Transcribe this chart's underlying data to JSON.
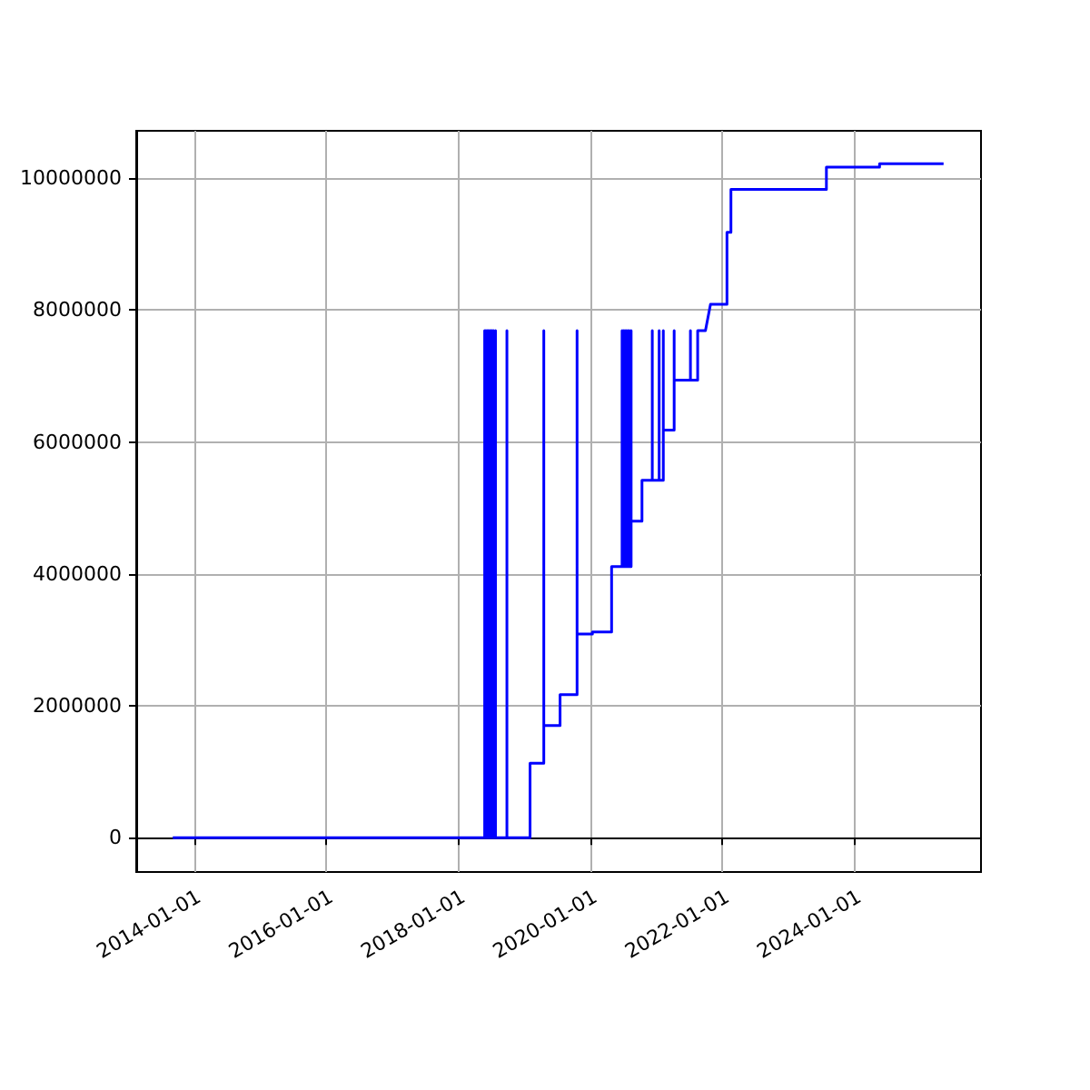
{
  "chart_data": {
    "type": "line",
    "color": "#0000ff",
    "grid": true,
    "x": [
      "2013-09-05",
      "2018-05-27",
      "2018-05-27",
      "2018-05-27",
      "2018-06-03",
      "2018-06-03",
      "2018-06-03",
      "2018-06-10",
      "2018-06-10",
      "2018-06-10",
      "2018-06-17",
      "2018-06-17",
      "2018-06-17",
      "2018-06-24",
      "2018-06-24",
      "2018-06-24",
      "2018-07-01",
      "2018-07-01",
      "2018-07-01",
      "2018-07-08",
      "2018-07-08",
      "2018-07-08",
      "2018-07-15",
      "2018-07-15",
      "2018-07-15",
      "2018-07-26",
      "2018-07-26",
      "2018-07-26",
      "2018-09-27",
      "2018-09-27",
      "2018-09-27",
      "2019-02-02",
      "2019-02-02",
      "2019-04-19",
      "2019-04-19",
      "2019-04-19",
      "2019-07-18",
      "2019-07-18",
      "2019-10-20",
      "2019-10-20",
      "2019-10-20",
      "2020-01-13",
      "2020-01-13",
      "2020-04-28",
      "2020-04-28",
      "2020-06-25",
      "2020-06-25",
      "2020-06-25",
      "2020-07-03",
      "2020-07-03",
      "2020-07-03",
      "2020-07-11",
      "2020-07-11",
      "2020-07-11",
      "2020-07-19",
      "2020-07-19",
      "2020-07-19",
      "2020-07-27",
      "2020-07-27",
      "2020-07-27",
      "2020-08-04",
      "2020-08-04",
      "2020-08-04",
      "2020-08-14",
      "2020-08-14",
      "2020-08-14",
      "2020-10-13",
      "2020-10-13",
      "2020-12-09",
      "2020-12-09",
      "2020-12-09",
      "2021-01-16",
      "2021-01-16",
      "2021-01-16",
      "2021-02-08",
      "2021-02-08",
      "2021-02-08",
      "2021-04-09",
      "2021-04-09",
      "2021-04-09",
      "2021-07-08",
      "2021-07-08",
      "2021-07-08",
      "2021-08-17",
      "2021-08-17",
      "2021-09-29",
      "2021-10-27",
      "2022-01-26",
      "2022-01-26",
      "2022-02-17",
      "2022-02-17",
      "2023-07-30",
      "2023-07-30",
      "2024-05-19",
      "2024-05-19",
      "2025-05-08"
    ],
    "values": [
      0,
      0,
      7690000,
      0,
      0,
      7690000,
      0,
      0,
      7690000,
      0,
      0,
      7690000,
      0,
      0,
      7690000,
      0,
      0,
      7690000,
      0,
      0,
      7690000,
      0,
      0,
      7690000,
      0,
      0,
      7690000,
      0,
      0,
      7690000,
      0,
      0,
      1130000,
      1130000,
      7690000,
      1700000,
      1700000,
      2170000,
      2170000,
      7690000,
      3090000,
      3090000,
      3120000,
      3120000,
      4110000,
      4110000,
      7690000,
      4110000,
      4110000,
      7690000,
      4110000,
      4110000,
      7690000,
      4110000,
      4110000,
      7690000,
      4110000,
      4110000,
      7690000,
      4110000,
      4110000,
      7690000,
      4110000,
      4110000,
      7690000,
      4800000,
      4800000,
      5420000,
      5420000,
      7690000,
      5420000,
      5420000,
      7690000,
      5420000,
      5420000,
      7690000,
      6180000,
      6180000,
      7690000,
      6940000,
      6940000,
      7690000,
      6940000,
      6940000,
      7690000,
      7690000,
      8090000,
      8090000,
      9180000,
      9180000,
      9830000,
      9830000,
      10170000,
      10170000,
      10220000,
      10220000
    ],
    "xlim": [
      "2013-02-15",
      "2025-12-01"
    ],
    "xticks": [
      "2014-01-01",
      "2016-01-01",
      "2018-01-01",
      "2020-01-01",
      "2022-01-01",
      "2024-01-01"
    ],
    "ylim": [
      -520000,
      10720000
    ],
    "yticks": [
      0,
      2000000,
      4000000,
      6000000,
      8000000,
      10000000
    ]
  }
}
